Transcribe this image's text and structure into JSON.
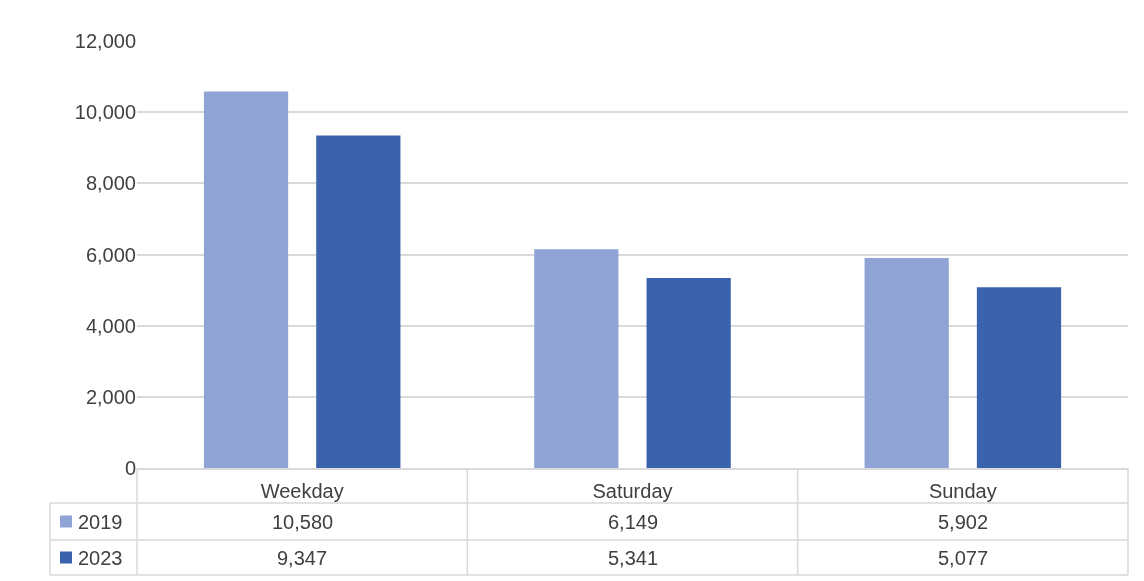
{
  "chart_data": {
    "type": "bar",
    "categories": [
      "Weekday",
      "Saturday",
      "Sunday"
    ],
    "series": [
      {
        "name": "2019",
        "color": "#8fa4d4",
        "values": [
          10580,
          6149,
          5902
        ],
        "value_labels": [
          "10,580",
          "6,149",
          "5,902"
        ]
      },
      {
        "name": "2023",
        "color": "#3a62ad",
        "values": [
          9347,
          5341,
          5077
        ],
        "value_labels": [
          "9,347",
          "5,341",
          "5,077"
        ]
      }
    ],
    "ylim": [
      0,
      12000
    ],
    "yticks": [
      {
        "value": 0,
        "label": "0"
      },
      {
        "value": 2000,
        "label": "2,000"
      },
      {
        "value": 4000,
        "label": "4,000"
      },
      {
        "value": 6000,
        "label": "6,000"
      },
      {
        "value": 8000,
        "label": "8,000"
      },
      {
        "value": 10000,
        "label": "10,000"
      },
      {
        "value": 12000,
        "label": "12,000"
      }
    ],
    "grid": "y",
    "legend": "bottom"
  }
}
